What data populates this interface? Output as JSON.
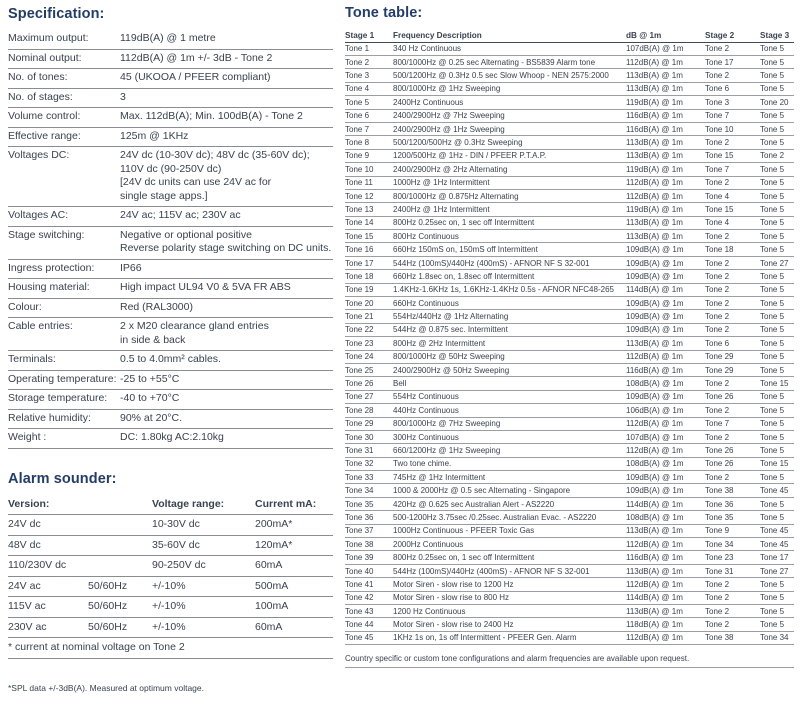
{
  "specification": {
    "title": "Specification:",
    "rows": [
      {
        "label": "Maximum output:",
        "value": "119dB(A) @ 1 metre"
      },
      {
        "label": "Nominal output:",
        "value": "112dB(A) @ 1m +/- 3dB - Tone 2"
      },
      {
        "label": "No. of tones:",
        "value": "45 (UKOOA / PFEER compliant)"
      },
      {
        "label": "No. of stages:",
        "value": "3"
      },
      {
        "label": "Volume control:",
        "value": "Max. 112dB(A); Min. 100dB(A) - Tone 2"
      },
      {
        "label": "Effective range:",
        "value": "125m @ 1KHz"
      },
      {
        "label": "Voltages DC:",
        "value_lines": [
          "24V dc (10-30V dc); 48V dc (35-60V dc);",
          "110V dc (90-250V dc)",
          "[24V dc units can use 24V ac for",
          "single stage apps.]"
        ]
      },
      {
        "label": "Voltages AC:",
        "value": "24V ac; 115V ac; 230V ac"
      },
      {
        "label": "Stage switching:",
        "value_lines": [
          "Negative or optional positive",
          "Reverse polarity stage switching on DC units."
        ]
      },
      {
        "label": "Ingress protection:",
        "value": "IP66"
      },
      {
        "label": "Housing material:",
        "value": "High impact UL94 V0 & 5VA FR ABS"
      },
      {
        "label": "Colour:",
        "value": "Red (RAL3000)"
      },
      {
        "label": "Cable entries:",
        "value_lines": [
          "2 x M20 clearance gland entries",
          "in side & back"
        ]
      },
      {
        "label": "Terminals:",
        "value": "0.5 to 4.0mm² cables."
      },
      {
        "label": "Operating temperature:",
        "value": "-25 to +55°C"
      },
      {
        "label": "Storage temperature:",
        "value": "-40 to +70°C"
      },
      {
        "label": "Relative humidity:",
        "value": "90% at 20°C."
      },
      {
        "label": "Weight :",
        "value": "DC: 1.80kg AC:2.10kg"
      }
    ]
  },
  "alarm_sounder": {
    "title": "Alarm sounder:",
    "headers": [
      "Version:",
      "",
      "Voltage range:",
      "Current mA:"
    ],
    "rows": [
      [
        "24V dc",
        "",
        "10-30V dc",
        "200mA*"
      ],
      [
        "48V dc",
        "",
        "35-60V dc",
        "120mA*"
      ],
      [
        "110/230V dc",
        "",
        "90-250V dc",
        "60mA"
      ],
      [
        "24V ac",
        "50/60Hz",
        "+/-10%",
        "500mA"
      ],
      [
        "115V ac",
        "50/60Hz",
        "+/-10%",
        "100mA"
      ],
      [
        "230V ac",
        "50/60Hz",
        "+/-10%",
        "60mA"
      ]
    ],
    "footnote": "* current at nominal voltage on Tone 2"
  },
  "spl_note": "*SPL data +/-3dB(A). Measured at optimum voltage.",
  "tone_table": {
    "title": "Tone table:",
    "headers": [
      "Stage 1",
      "Frequency Description",
      "dB @ 1m",
      "Stage 2",
      "Stage 3"
    ],
    "rows": [
      [
        "Tone 1",
        "340 Hz Continuous",
        "107dB(A) @ 1m",
        "Tone 2",
        "Tone 5"
      ],
      [
        "Tone 2",
        "800/1000Hz @ 0.25 sec Alternating - BS5839 Alarm tone",
        "112dB(A) @ 1m",
        "Tone 17",
        "Tone 5"
      ],
      [
        "Tone 3",
        "500/1200Hz @ 0.3Hz 0.5 sec Slow Whoop - NEN 2575:2000",
        "113dB(A) @ 1m",
        "Tone 2",
        "Tone 5"
      ],
      [
        "Tone 4",
        "800/1000Hz @ 1Hz Sweeping",
        "113dB(A) @ 1m",
        "Tone 6",
        "Tone 5"
      ],
      [
        "Tone 5",
        "2400Hz Continuous",
        "119dB(A) @ 1m",
        "Tone 3",
        "Tone 20"
      ],
      [
        "Tone 6",
        "2400/2900Hz @ 7Hz Sweeping",
        "116dB(A) @ 1m",
        "Tone 7",
        "Tone 5"
      ],
      [
        "Tone 7",
        "2400/2900Hz @ 1Hz Sweeping",
        "116dB(A) @ 1m",
        "Tone 10",
        "Tone 5"
      ],
      [
        "Tone 8",
        "500/1200/500Hz @ 0.3Hz Sweeping",
        "113dB(A) @ 1m",
        "Tone 2",
        "Tone 5"
      ],
      [
        "Tone 9",
        "1200/500Hz @ 1Hz - DIN / PFEER P.T.A.P.",
        "113dB(A) @ 1m",
        "Tone 15",
        "Tone 2"
      ],
      [
        "Tone 10",
        "2400/2900Hz @ 2Hz Alternating",
        "119dB(A) @ 1m",
        "Tone 7",
        "Tone 5"
      ],
      [
        "Tone 11",
        "1000Hz @ 1Hz Intermittent",
        "112dB(A) @ 1m",
        "Tone 2",
        "Tone 5"
      ],
      [
        "Tone 12",
        "800/1000Hz @ 0.875Hz Alternating",
        "112dB(A) @ 1m",
        "Tone 4",
        "Tone 5"
      ],
      [
        "Tone 13",
        "2400Hz @ 1Hz Intermittent",
        "119dB(A) @ 1m",
        "Tone 15",
        "Tone 5"
      ],
      [
        "Tone 14",
        "800Hz 0.25sec on, 1 sec off Intermittent",
        "113dB(A) @ 1m",
        "Tone 4",
        "Tone 5"
      ],
      [
        "Tone 15",
        "800Hz Continuous",
        "113dB(A) @ 1m",
        "Tone 2",
        "Tone 5"
      ],
      [
        "Tone 16",
        "660Hz 150mS on, 150mS off Intermittent",
        "109dB(A) @ 1m",
        "Tone 18",
        "Tone 5"
      ],
      [
        "Tone 17",
        "544Hz (100mS)/440Hz (400mS) - AFNOR NF S 32-001",
        "109dB(A) @ 1m",
        "Tone 2",
        "Tone 27"
      ],
      [
        "Tone 18",
        "660Hz 1.8sec on, 1.8sec off Intermittent",
        "109dB(A) @ 1m",
        "Tone 2",
        "Tone 5"
      ],
      [
        "Tone 19",
        "1.4KHz-1.6KHz 1s, 1.6KHz-1.4KHz 0.5s - AFNOR NFC48-265",
        "114dB(A) @ 1m",
        "Tone 2",
        "Tone 5"
      ],
      [
        "Tone 20",
        "660Hz Continuous",
        "109dB(A) @ 1m",
        "Tone 2",
        "Tone 5"
      ],
      [
        "Tone 21",
        "554Hz/440Hz @ 1Hz Alternating",
        "109dB(A) @ 1m",
        "Tone 2",
        "Tone 5"
      ],
      [
        "Tone 22",
        "544Hz @ 0.875 sec. Intermittent",
        "109dB(A) @ 1m",
        "Tone 2",
        "Tone 5"
      ],
      [
        "Tone 23",
        "800Hz @ 2Hz Intermittent",
        "113dB(A) @ 1m",
        "Tone 6",
        "Tone 5"
      ],
      [
        "Tone 24",
        "800/1000Hz @ 50Hz Sweeping",
        "112dB(A) @ 1m",
        "Tone 29",
        "Tone 5"
      ],
      [
        "Tone 25",
        "2400/2900Hz @ 50Hz Sweeping",
        "116dB(A) @ 1m",
        "Tone 29",
        "Tone 5"
      ],
      [
        "Tone 26",
        "Bell",
        "108dB(A) @ 1m",
        "Tone 2",
        "Tone 15"
      ],
      [
        "Tone 27",
        "554Hz Continuous",
        "109dB(A) @ 1m",
        "Tone 26",
        "Tone 5"
      ],
      [
        "Tone 28",
        "440Hz Continuous",
        "106dB(A) @ 1m",
        "Tone 2",
        "Tone 5"
      ],
      [
        "Tone 29",
        "800/1000Hz @ 7Hz Sweeping",
        "112dB(A) @ 1m",
        "Tone 7",
        "Tone 5"
      ],
      [
        "Tone 30",
        "300Hz Continuous",
        "107dB(A) @ 1m",
        "Tone 2",
        "Tone 5"
      ],
      [
        "Tone 31",
        "660/1200Hz @ 1Hz Sweeping",
        "112dB(A) @ 1m",
        "Tone 26",
        "Tone 5"
      ],
      [
        "Tone 32",
        "Two tone chime.",
        "108dB(A) @ 1m",
        "Tone 26",
        "Tone 15"
      ],
      [
        "Tone 33",
        "745Hz @ 1Hz Intermittent",
        "109dB(A) @ 1m",
        "Tone 2",
        "Tone 5"
      ],
      [
        "Tone 34",
        "1000 & 2000Hz @ 0.5 sec Alternating - Singapore",
        "109dB(A) @ 1m",
        "Tone 38",
        "Tone 45"
      ],
      [
        "Tone 35",
        "420Hz @ 0.625 sec Australian Alert - AS2220",
        "114dB(A) @ 1m",
        "Tone 36",
        "Tone 5"
      ],
      [
        "Tone 36",
        "500-1200Hz 3.75sec /0.25sec. Australian Evac. - AS2220",
        "108dB(A) @ 1m",
        "Tone 35",
        "Tone 5"
      ],
      [
        "Tone 37",
        "1000Hz Continuous - PFEER Toxic Gas",
        "113dB(A) @ 1m",
        "Tone 9",
        "Tone 45"
      ],
      [
        "Tone 38",
        "2000Hz Continuous",
        "112dB(A) @ 1m",
        "Tone 34",
        "Tone 45"
      ],
      [
        "Tone 39",
        "800Hz 0.25sec on, 1 sec off Intermittent",
        "116dB(A) @ 1m",
        "Tone 23",
        "Tone 17"
      ],
      [
        "Tone 40",
        "544Hz (100mS)/440Hz (400mS) - AFNOR NF S 32-001",
        "113dB(A) @ 1m",
        "Tone 31",
        "Tone 27"
      ],
      [
        "Tone 41",
        "Motor Siren - slow rise to 1200 Hz",
        "112dB(A) @ 1m",
        "Tone 2",
        "Tone 5"
      ],
      [
        "Tone 42",
        "Motor Siren - slow rise to 800 Hz",
        "114dB(A) @ 1m",
        "Tone 2",
        "Tone 5"
      ],
      [
        "Tone 43",
        "1200 Hz Continuous",
        "113dB(A) @ 1m",
        "Tone 2",
        "Tone 5"
      ],
      [
        "Tone 44",
        "Motor Siren - slow rise to 2400 Hz",
        "118dB(A) @ 1m",
        "Tone 2",
        "Tone 5"
      ],
      [
        "Tone 45",
        "1KHz 1s on, 1s off Intermittent - PFEER Gen. Alarm",
        "112dB(A) @ 1m",
        "Tone 38",
        "Tone 34"
      ]
    ],
    "footnote": "Country specific or custom tone configurations and alarm frequencies are available upon request."
  }
}
